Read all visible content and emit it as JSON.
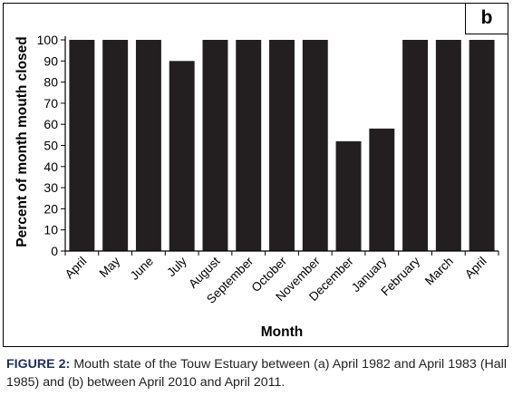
{
  "panel_label": "b",
  "caption": {
    "label": "FIGURE 2:",
    "text": "Mouth state of the Touw Estuary between (a) April 1982 and April 1983 (Hall 1985) and (b) between April 2010 and April 2011."
  },
  "colors": {
    "bar": "#231f20",
    "axis": "#000000"
  },
  "chart_data": {
    "type": "bar",
    "categories": [
      "April",
      "May",
      "June",
      "July",
      "August",
      "September",
      "October",
      "November",
      "December",
      "January",
      "February",
      "March",
      "April"
    ],
    "values": [
      100,
      100,
      100,
      90,
      100,
      100,
      100,
      100,
      52,
      58,
      100,
      100,
      100
    ],
    "xlabel": "Month",
    "ylabel": "Percent of month mouth closed",
    "ylim": [
      0,
      100
    ],
    "yticks": [
      0,
      10,
      20,
      30,
      40,
      50,
      60,
      70,
      80,
      90,
      100
    ],
    "grid": false,
    "legend": "none"
  }
}
